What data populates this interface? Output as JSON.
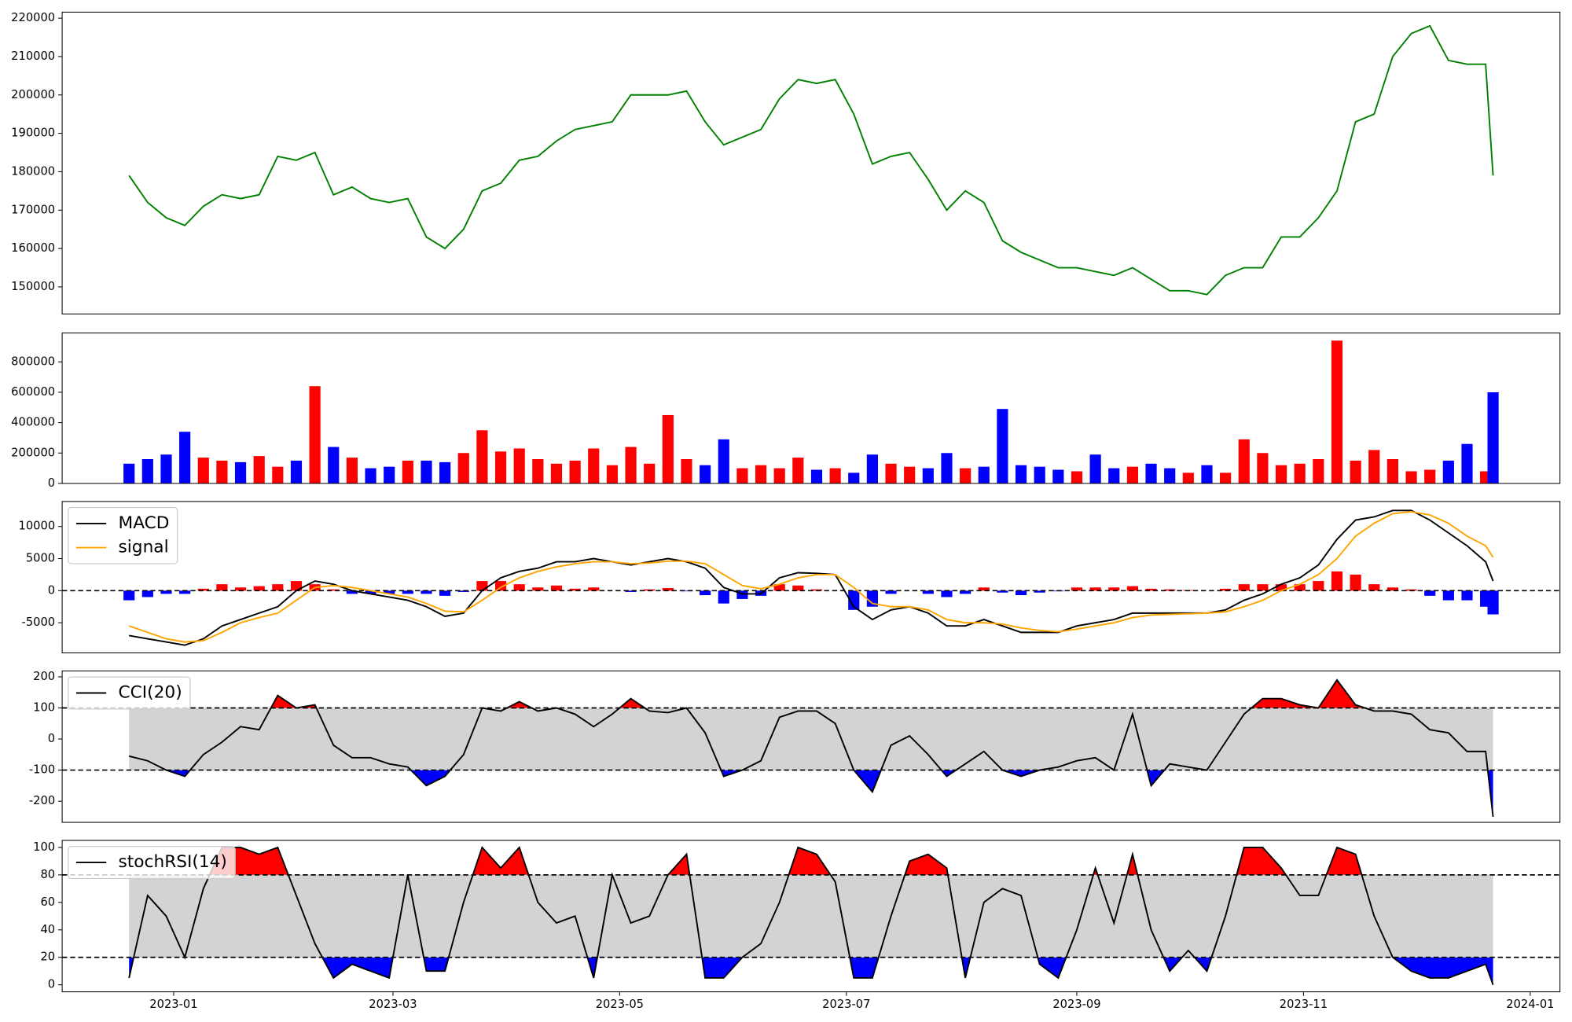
{
  "chart_data": {
    "type": "multi",
    "x": [
      19346,
      19351,
      19356,
      19361,
      19366,
      19371,
      19376,
      19381,
      19386,
      19391,
      19396,
      19401,
      19406,
      19411,
      19416,
      19421,
      19426,
      19431,
      19436,
      19441,
      19446,
      19451,
      19456,
      19461,
      19466,
      19471,
      19476,
      19481,
      19486,
      19491,
      19496,
      19501,
      19506,
      19511,
      19516,
      19521,
      19526,
      19531,
      19536,
      19541,
      19546,
      19551,
      19556,
      19561,
      19566,
      19571,
      19576,
      19581,
      19586,
      19591,
      19596,
      19601,
      19606,
      19611,
      19616,
      19621,
      19626,
      19631,
      19636,
      19641,
      19646,
      19651,
      19656,
      19661,
      19666,
      19671,
      19676,
      19681,
      19686,
      19691,
      19696,
      19701,
      19706,
      19711,
      19713
    ],
    "xlim": [
      19328,
      19731
    ],
    "xticks": [
      {
        "value": 19358,
        "label": "2023-01"
      },
      {
        "value": 19417,
        "label": "2023-03"
      },
      {
        "value": 19478,
        "label": "2023-05"
      },
      {
        "value": 19539,
        "label": "2023-07"
      },
      {
        "value": 19601,
        "label": "2023-09"
      },
      {
        "value": 19662,
        "label": "2023-11"
      },
      {
        "value": 19723,
        "label": "2024-01"
      }
    ],
    "panels": [
      {
        "type": "line",
        "ylim": [
          142950,
          221570
        ],
        "yticks": [
          150000,
          160000,
          170000,
          180000,
          190000,
          200000,
          210000,
          220000
        ],
        "series": [
          {
            "color": "#008000",
            "values": [
              179000,
              172000,
              168000,
              166000,
              171000,
              174000,
              173000,
              174000,
              184000,
              183000,
              185000,
              174000,
              176000,
              173000,
              172000,
              173000,
              163000,
              160000,
              165000,
              175000,
              177000,
              183000,
              184000,
              188000,
              191000,
              192000,
              193000,
              200000,
              200000,
              200000,
              201000,
              193000,
              187000,
              189000,
              191000,
              199000,
              204000,
              203000,
              204000,
              195000,
              182000,
              184000,
              185000,
              178000,
              170000,
              175000,
              172000,
              162000,
              159000,
              157000,
              155000,
              155000,
              154000,
              153000,
              155000,
              152000,
              149000,
              149000,
              148000,
              153000,
              155000,
              155000,
              163000,
              163000,
              168000,
              175000,
              193000,
              195000,
              210000,
              216000,
              218000,
              209000,
              208000,
              208000,
              179000
            ]
          }
        ]
      },
      {
        "type": "bar",
        "ylim": [
          0,
          990000
        ],
        "yticks": [
          0,
          200000,
          400000,
          600000,
          800000
        ],
        "values": [
          130000,
          160000,
          190000,
          340000,
          170000,
          150000,
          140000,
          180000,
          110000,
          150000,
          640000,
          240000,
          170000,
          100000,
          110000,
          150000,
          150000,
          140000,
          200000,
          350000,
          210000,
          230000,
          160000,
          130000,
          150000,
          230000,
          120000,
          240000,
          130000,
          450000,
          160000,
          120000,
          290000,
          100000,
          120000,
          100000,
          170000,
          90000,
          100000,
          70000,
          190000,
          130000,
          110000,
          100000,
          200000,
          100000,
          110000,
          490000,
          120000,
          110000,
          90000,
          80000,
          190000,
          100000,
          110000,
          130000,
          100000,
          70000,
          120000,
          70000,
          290000,
          200000,
          120000,
          130000,
          160000,
          940000,
          150000,
          220000,
          160000,
          80000,
          90000,
          150000,
          260000,
          80000,
          600000
        ],
        "colors": [
          "blue",
          "blue",
          "blue",
          "blue",
          "red",
          "red",
          "blue",
          "red",
          "red",
          "blue",
          "red",
          "blue",
          "red",
          "blue",
          "blue",
          "red",
          "blue",
          "blue",
          "red",
          "red",
          "red",
          "red",
          "red",
          "red",
          "red",
          "red",
          "red",
          "red",
          "red",
          "red",
          "red",
          "blue",
          "blue",
          "red",
          "red",
          "red",
          "red",
          "blue",
          "red",
          "blue",
          "blue",
          "red",
          "red",
          "blue",
          "blue",
          "red",
          "blue",
          "blue",
          "blue",
          "blue",
          "blue",
          "red",
          "blue",
          "blue",
          "red",
          "blue",
          "blue",
          "red",
          "blue",
          "red",
          "red",
          "red",
          "red",
          "red",
          "red",
          "red",
          "red",
          "red",
          "red",
          "red",
          "red",
          "blue",
          "blue",
          "red",
          "blue"
        ]
      },
      {
        "type": "macd",
        "ylim": [
          -9700,
          13900
        ],
        "yticks": [
          -5000,
          0,
          5000,
          10000
        ],
        "levels": [
          0
        ],
        "legend": "upper left",
        "histogram": {
          "positive_color": "red",
          "negative_color": "blue",
          "values": [
            -1500,
            -1000,
            -500,
            -500,
            300,
            1000,
            500,
            700,
            1000,
            1500,
            1000,
            200,
            -500,
            -500,
            -500,
            -500,
            -500,
            -800,
            -200,
            1500,
            1500,
            1000,
            500,
            800,
            300,
            500,
            0,
            -200,
            200,
            400,
            -100,
            -700,
            -2000,
            -1300,
            -800,
            1000,
            800,
            200,
            0,
            -3000,
            -2500,
            -500,
            0,
            -500,
            -1000,
            -500,
            500,
            -300,
            -700,
            -300,
            -100,
            500,
            500,
            500,
            700,
            300,
            200,
            100,
            0,
            300,
            1000,
            1000,
            1000,
            1000,
            1500,
            3000,
            2500,
            1000,
            500,
            200,
            -800,
            -1500,
            -1500,
            -2500,
            -3700
          ]
        },
        "series": [
          {
            "name": "MACD",
            "color": "black",
            "values": [
              -7000,
              -7500,
              -8000,
              -8500,
              -7500,
              -5500,
              -4500,
              -3500,
              -2500,
              0,
              1500,
              1000,
              0,
              -500,
              -1000,
              -1500,
              -2500,
              -4000,
              -3500,
              0,
              2000,
              3000,
              3500,
              4500,
              4500,
              5000,
              4500,
              4000,
              4500,
              5000,
              4500,
              3500,
              500,
              -500,
              -500,
              2000,
              2800,
              2700,
              2500,
              -2500,
              -4500,
              -3000,
              -2500,
              -3500,
              -5500,
              -5500,
              -4500,
              -5500,
              -6500,
              -6500,
              -6500,
              -5500,
              -5000,
              -4500,
              -3500,
              -3500,
              -3500,
              -3500,
              -3500,
              -3000,
              -1500,
              -500,
              1000,
              2000,
              4000,
              8000,
              11000,
              11500,
              12500,
              12500,
              11000,
              9000,
              7000,
              4500,
              1500
            ]
          },
          {
            "name": "signal",
            "color": "orange",
            "values": [
              -5500,
              -6500,
              -7500,
              -8000,
              -7800,
              -6500,
              -5000,
              -4200,
              -3500,
              -1500,
              500,
              800,
              500,
              0,
              -500,
              -1000,
              -2000,
              -3200,
              -3300,
              -1500,
              500,
              2000,
              3000,
              3700,
              4200,
              4500,
              4500,
              4200,
              4300,
              4600,
              4600,
              4200,
              2500,
              800,
              300,
              1000,
              2000,
              2500,
              2500,
              500,
              -2000,
              -2500,
              -2500,
              -3000,
              -4500,
              -5000,
              -5000,
              -5200,
              -5800,
              -6200,
              -6400,
              -6000,
              -5500,
              -5000,
              -4200,
              -3800,
              -3700,
              -3600,
              -3500,
              -3300,
              -2500,
              -1500,
              0,
              1000,
              2500,
              5000,
              8500,
              10500,
              12000,
              12300,
              11800,
              10500,
              8500,
              7000,
              5200
            ]
          }
        ]
      },
      {
        "type": "oscillator",
        "ylim": [
          -268,
          219
        ],
        "yticks": [
          -200,
          -100,
          0,
          100,
          200
        ],
        "levels": [
          100,
          -100
        ],
        "legend": "upper left",
        "upper_fill": "red",
        "lower_fill": "blue",
        "band_fill": "lightgray",
        "series": [
          {
            "name": "CCI(20)",
            "color": "black",
            "values": [
              -55,
              -70,
              -100,
              -120,
              -50,
              -10,
              40,
              30,
              140,
              100,
              110,
              -20,
              -60,
              -60,
              -80,
              -90,
              -150,
              -120,
              -50,
              100,
              90,
              120,
              90,
              100,
              80,
              40,
              80,
              130,
              90,
              85,
              100,
              20,
              -120,
              -100,
              -70,
              70,
              90,
              90,
              50,
              -100,
              -170,
              -20,
              10,
              -50,
              -120,
              -80,
              -40,
              -100,
              -120,
              -100,
              -90,
              -70,
              -60,
              -100,
              80,
              -150,
              -80,
              -90,
              -100,
              -10,
              80,
              130,
              130,
              110,
              100,
              190,
              110,
              90,
              90,
              80,
              30,
              20,
              -40,
              -40,
              -250
            ]
          }
        ]
      },
      {
        "type": "oscillator",
        "ylim": [
          -5.1,
          105.1
        ],
        "yticks": [
          0,
          20,
          40,
          60,
          80,
          100
        ],
        "levels": [
          80,
          20
        ],
        "legend": "upper left",
        "upper_fill": "red",
        "lower_fill": "blue",
        "band_fill": "lightgray",
        "series": [
          {
            "name": "stochRSI(14)",
            "color": "black",
            "values": [
              5,
              65,
              50,
              20,
              70,
              100,
              100,
              95,
              100,
              65,
              30,
              5,
              15,
              10,
              5,
              80,
              10,
              10,
              60,
              100,
              85,
              100,
              60,
              45,
              50,
              5,
              80,
              45,
              50,
              80,
              95,
              5,
              5,
              20,
              30,
              60,
              100,
              95,
              75,
              5,
              5,
              50,
              90,
              95,
              85,
              5,
              60,
              70,
              65,
              15,
              5,
              40,
              85,
              45,
              95,
              40,
              10,
              25,
              10,
              50,
              100,
              100,
              85,
              65,
              65,
              100,
              95,
              50,
              20,
              10,
              5,
              5,
              10,
              15,
              0
            ]
          }
        ]
      }
    ]
  }
}
